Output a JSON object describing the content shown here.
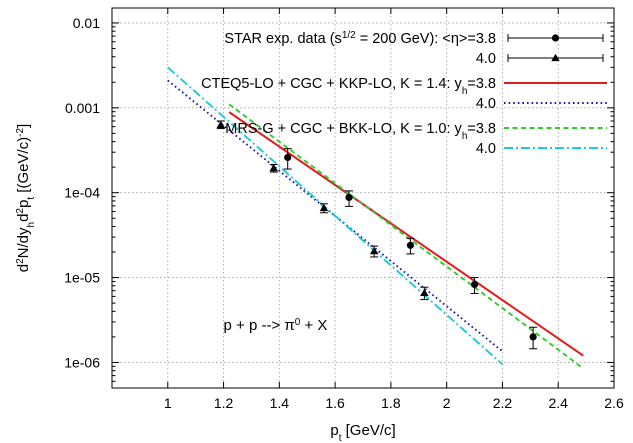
{
  "chart_data": {
    "type": "scatter",
    "x_axis": {
      "label_base": "p",
      "label_sub": "t",
      "label_rest": " [GeV/c]",
      "range": [
        0.8,
        2.6
      ],
      "ticks": [
        {
          "v": 1.0,
          "label": "1"
        },
        {
          "v": 1.2,
          "label": "1.2"
        },
        {
          "v": 1.4,
          "label": "1.4"
        },
        {
          "v": 1.6,
          "label": "1.6"
        },
        {
          "v": 1.8,
          "label": "1.8"
        },
        {
          "v": 2.0,
          "label": "2"
        },
        {
          "v": 2.2,
          "label": "2.2"
        },
        {
          "v": 2.4,
          "label": "2.4"
        },
        {
          "v": 2.6,
          "label": "2.6"
        }
      ]
    },
    "y_axis": {
      "scale": "log",
      "label_parts": [
        "d",
        "2",
        "N/dy",
        "h",
        "d",
        "2",
        "p",
        "t",
        " [(GeV/c)",
        "-2",
        "]"
      ],
      "range": [
        5e-07,
        0.015
      ],
      "ticks": [
        {
          "v": 1e-06,
          "label": "1e-06"
        },
        {
          "v": 1e-05,
          "label": "1e-05"
        },
        {
          "v": 0.0001,
          "label": "1e-04"
        },
        {
          "v": 0.001,
          "label": "0.001"
        },
        {
          "v": 0.01,
          "label": "0.01"
        }
      ]
    },
    "grid": true,
    "legend_placement": "top-right",
    "series": [
      {
        "kind": "points",
        "marker": "circle",
        "color": "#000000",
        "legend_prefix": "STAR exp. data (s",
        "legend_sup": "1/2",
        "legend_suffix": " = 200 GeV): <η>=3.8",
        "points": [
          {
            "x": 1.43,
            "y": 0.00026,
            "lo": 0.00019,
            "hi": 0.00033
          },
          {
            "x": 1.65,
            "y": 8.8e-05,
            "lo": 6.9e-05,
            "hi": 0.000105
          },
          {
            "x": 1.87,
            "y": 2.4e-05,
            "lo": 1.9e-05,
            "hi": 2.9e-05
          },
          {
            "x": 2.1,
            "y": 8.3e-06,
            "lo": 6.5e-06,
            "hi": 1e-05
          },
          {
            "x": 2.31,
            "y": 2e-06,
            "lo": 1.45e-06,
            "hi": 2.6e-06
          }
        ]
      },
      {
        "kind": "points",
        "marker": "triangle",
        "color": "#000000",
        "legend_text": "4.0",
        "points": [
          {
            "x": 1.19,
            "y": 0.00063,
            "lo": 0.00057,
            "hi": 0.0007
          },
          {
            "x": 1.38,
            "y": 0.000195,
            "lo": 0.000175,
            "hi": 0.000215
          },
          {
            "x": 1.56,
            "y": 6.6e-05,
            "lo": 5.8e-05,
            "hi": 7.4e-05
          },
          {
            "x": 1.74,
            "y": 2.05e-05,
            "lo": 1.75e-05,
            "hi": 2.35e-05
          },
          {
            "x": 1.92,
            "y": 6.6e-06,
            "lo": 5.5e-06,
            "hi": 7.7e-06
          }
        ]
      },
      {
        "kind": "line",
        "style": "solid",
        "color": "#e31a1c",
        "legend_prefix": "CTEQ5-LO + CGC + KKP-LO, K = 1.4: y",
        "legend_sub": "h",
        "legend_suffix": "=3.8",
        "points": [
          {
            "x": 1.22,
            "y": 0.00089
          },
          {
            "x": 2.49,
            "y": 1.2e-06
          }
        ]
      },
      {
        "kind": "line",
        "style": "dotted",
        "color": "#1a1aa6",
        "legend_text": "4.0",
        "points": [
          {
            "x": 1.0,
            "y": 0.0021
          },
          {
            "x": 2.2,
            "y": 1.35e-06
          }
        ]
      },
      {
        "kind": "line",
        "style": "dashed",
        "color": "#2ecc2e",
        "legend_prefix": "MRS-G + CGC + BKK-LO, K = 1.0: y",
        "legend_sub": "h",
        "legend_suffix": "=3.8",
        "points": [
          {
            "x": 1.22,
            "y": 0.0011
          },
          {
            "x": 2.49,
            "y": 8.5e-07
          }
        ]
      },
      {
        "kind": "line",
        "style": "dashdot",
        "color": "#1fc8d6",
        "legend_text": "4.0",
        "points": [
          {
            "x": 1.0,
            "y": 0.003
          },
          {
            "x": 2.2,
            "y": 9.5e-07
          }
        ]
      }
    ],
    "annotation": {
      "prefix": "p + p --> π",
      "sup": "0",
      "suffix": " + X",
      "x": 1.2,
      "y": 2.4e-06
    }
  }
}
